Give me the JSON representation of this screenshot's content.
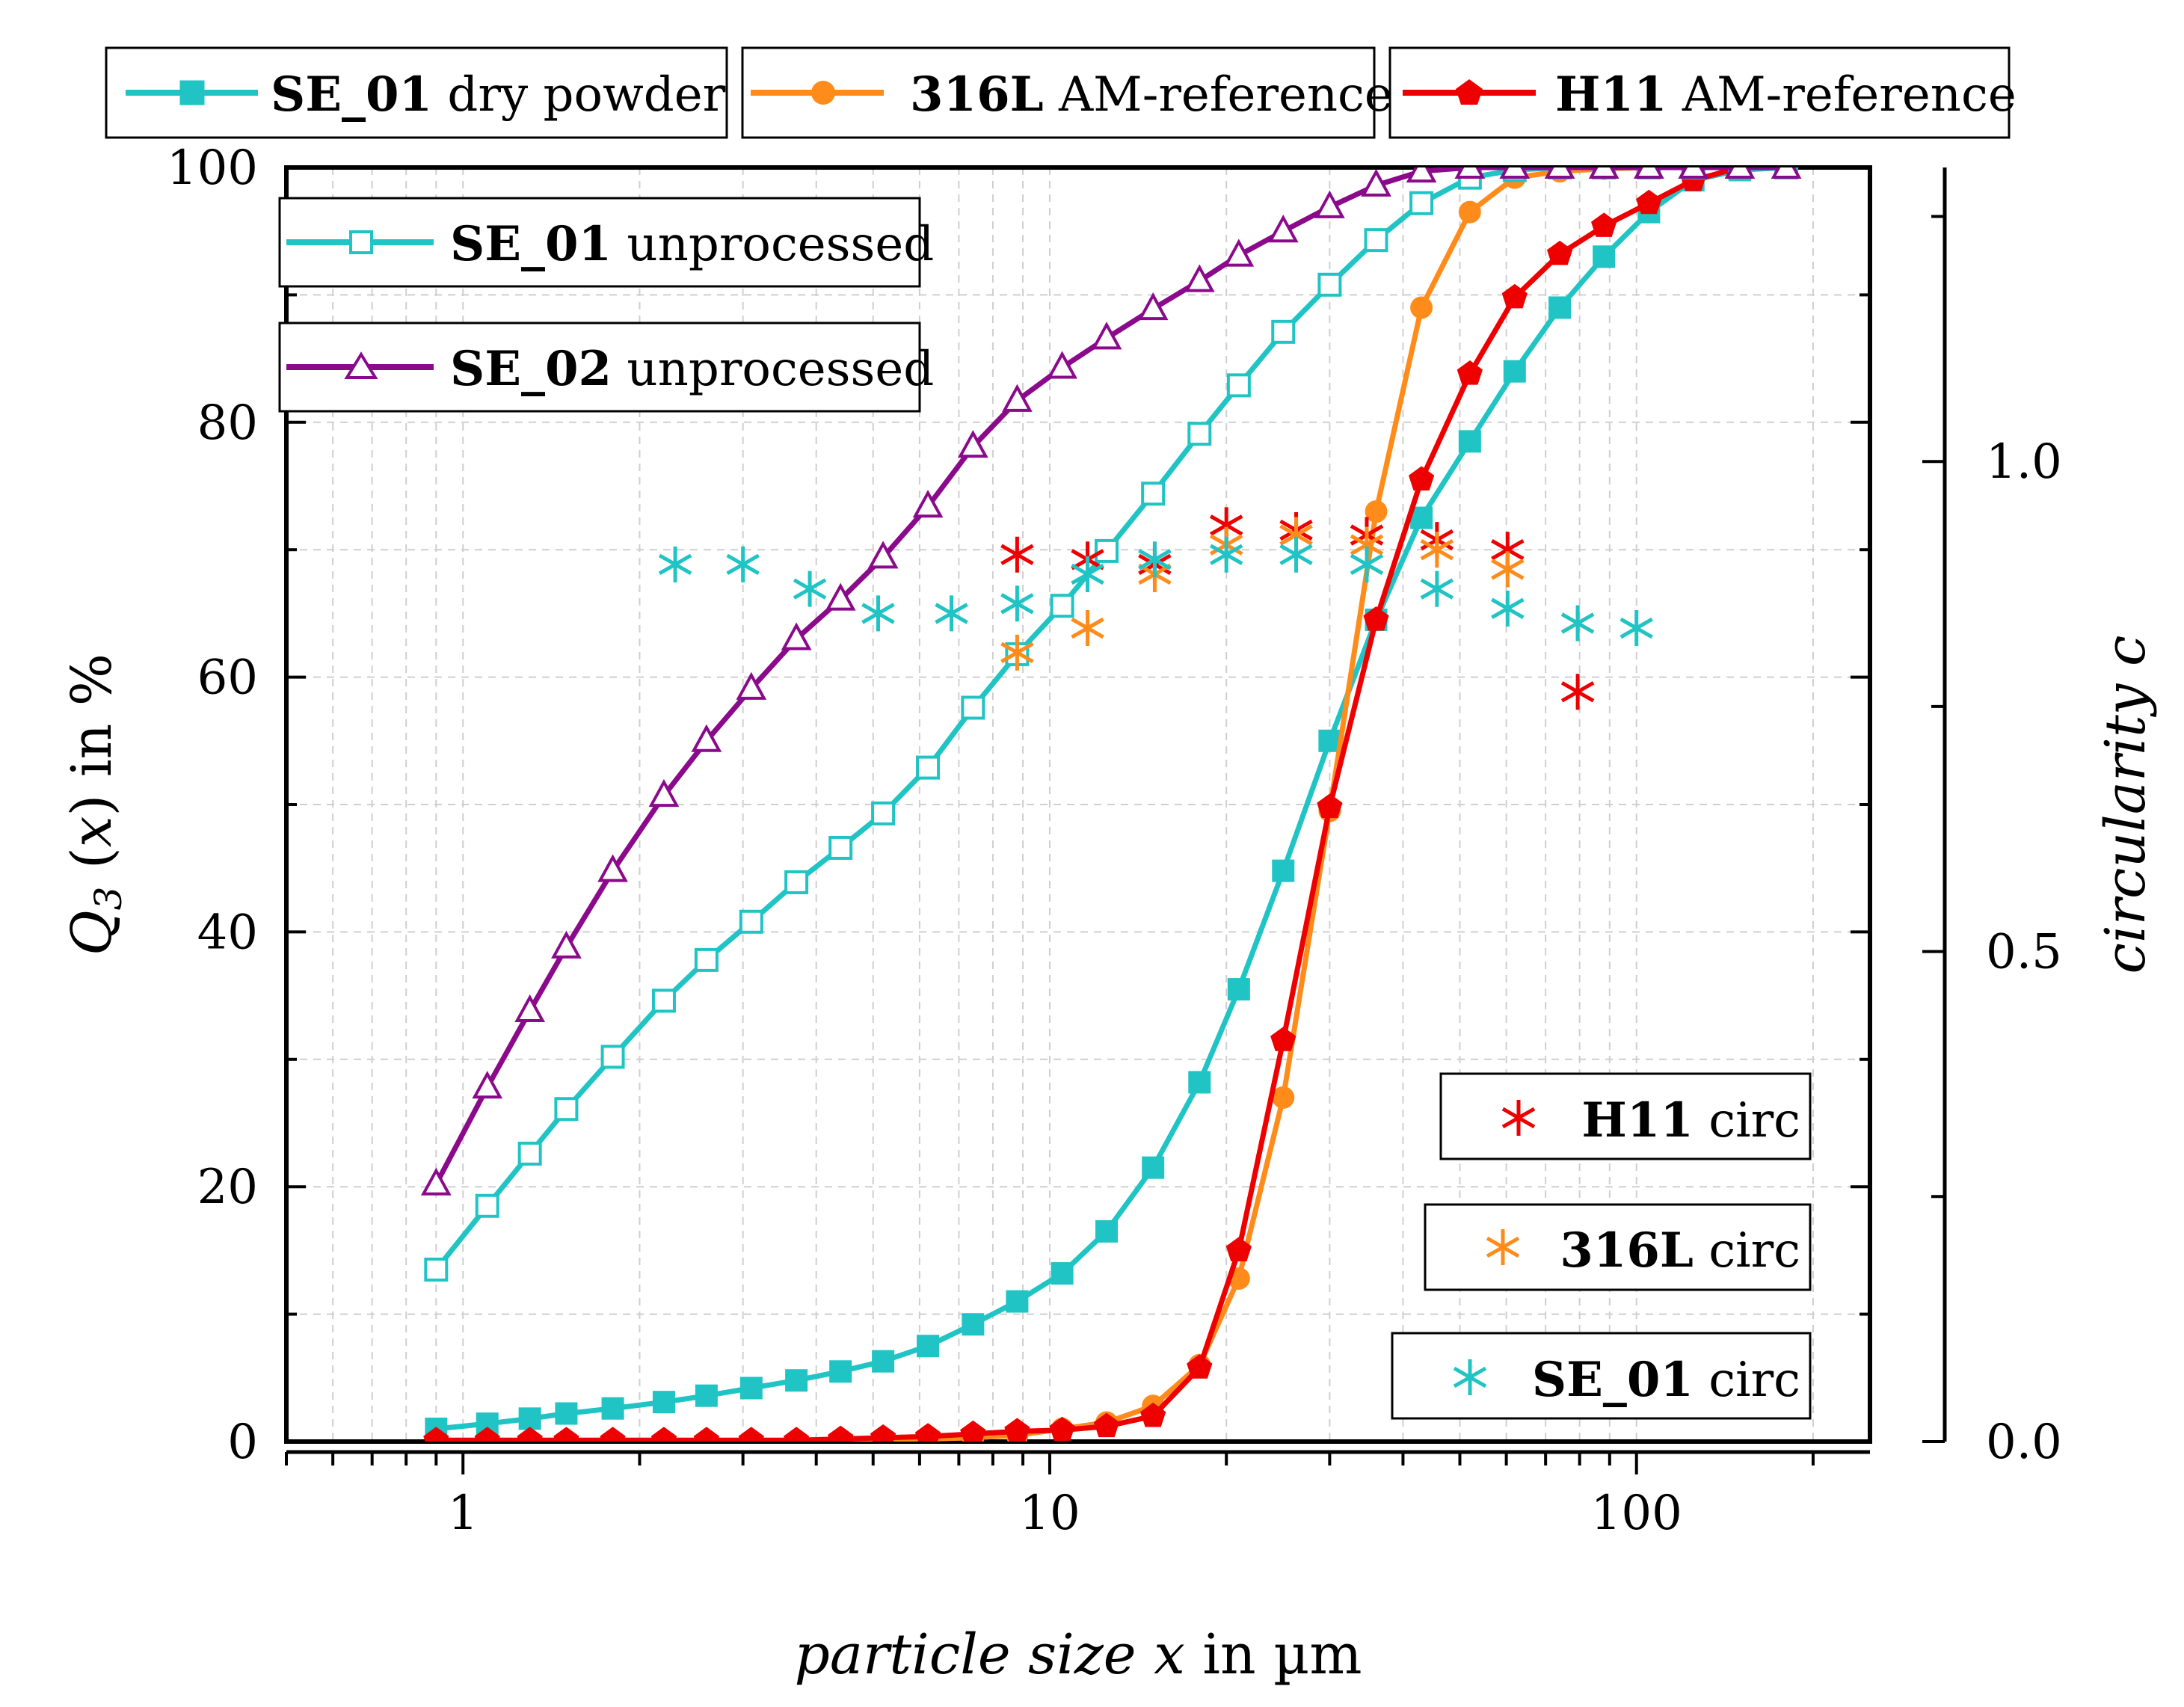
{
  "chart_data": {
    "type": "line",
    "x_axis": {
      "label_italic": "particle size x",
      "label_rest": " in µm",
      "scale": "log",
      "range": [
        0.5,
        250
      ],
      "ticks": [
        1,
        10,
        100
      ],
      "tick_labels": [
        "1",
        "10",
        "100"
      ]
    },
    "y_axis_left": {
      "label_q": "Q",
      "label_sub": "3",
      "label_x": "x",
      "label_rest": " in %",
      "range": [
        0,
        100
      ],
      "ticks": [
        0,
        20,
        40,
        60,
        80,
        100
      ],
      "tick_labels": [
        "0",
        "20",
        "40",
        "60",
        "80",
        "100"
      ]
    },
    "y_axis_right": {
      "label": "circularity c",
      "range": [
        0,
        1.3
      ],
      "ticks": [
        0,
        0.5,
        1.0
      ],
      "tick_labels": [
        "0.0",
        "0.5",
        "1.0"
      ]
    },
    "grid": true,
    "series": [
      {
        "name_bold": "SE_01",
        "name_rest": " dry powder",
        "color": "#20c4c4",
        "marker": "square-filled",
        "x": [
          0.9,
          1.1,
          1.3,
          1.5,
          1.8,
          2.2,
          2.6,
          3.1,
          3.7,
          4.4,
          5.2,
          6.2,
          7.4,
          8.8,
          10.5,
          12.5,
          15,
          18,
          21,
          25,
          30,
          36,
          43,
          52,
          62,
          74,
          88,
          105,
          125,
          150,
          180
        ],
        "y": [
          1,
          1.4,
          1.8,
          2.2,
          2.6,
          3.1,
          3.6,
          4.2,
          4.8,
          5.5,
          6.3,
          7.5,
          9.2,
          11,
          13.2,
          16.5,
          21.5,
          28.2,
          35.5,
          44.8,
          55,
          64.5,
          72.5,
          78.5,
          84,
          89,
          93,
          96.5,
          99,
          99.8,
          100
        ]
      },
      {
        "name_bold": "316L",
        "name_rest": " AM-reference",
        "color": "#ff8c1a",
        "marker": "circle-filled",
        "x": [
          0.9,
          1.1,
          1.3,
          1.5,
          1.8,
          2.2,
          2.6,
          3.1,
          3.7,
          4.4,
          5.2,
          6.2,
          7.4,
          8.8,
          10.5,
          12.5,
          15,
          18,
          21,
          25,
          30,
          36,
          43,
          52,
          62,
          74,
          88,
          105,
          125,
          150,
          180
        ],
        "y": [
          0,
          0,
          0,
          0,
          0,
          0,
          0,
          0,
          0,
          0,
          0.1,
          0.2,
          0.3,
          0.5,
          1,
          1.5,
          2.8,
          6,
          12.8,
          27,
          49.5,
          73,
          89,
          96.5,
          99.2,
          99.7,
          99.9,
          100,
          100,
          100,
          100
        ]
      },
      {
        "name_bold": "H11",
        "name_rest": " AM-reference",
        "color": "#ee0000",
        "marker": "pentagon-filled",
        "x": [
          0.9,
          1.1,
          1.3,
          1.5,
          1.8,
          2.2,
          2.6,
          3.1,
          3.7,
          4.4,
          5.2,
          6.2,
          7.4,
          8.8,
          10.5,
          12.5,
          15,
          18,
          21,
          25,
          30,
          36,
          43,
          52,
          62,
          74,
          88,
          105,
          125,
          150,
          180
        ],
        "y": [
          0.1,
          0.1,
          0.1,
          0.1,
          0.1,
          0.1,
          0.1,
          0.1,
          0.1,
          0.2,
          0.3,
          0.4,
          0.6,
          0.8,
          0.9,
          1.2,
          2,
          5.8,
          15,
          31.5,
          49.8,
          64.5,
          75.5,
          83.8,
          89.8,
          93.2,
          95.4,
          97.2,
          99,
          100,
          100
        ]
      },
      {
        "name_bold": "SE_01",
        "name_rest": " unprocessed",
        "color": "#20c4c4",
        "marker": "square-open",
        "x": [
          0.9,
          1.1,
          1.3,
          1.5,
          1.8,
          2.2,
          2.6,
          3.1,
          3.7,
          4.4,
          5.2,
          6.2,
          7.4,
          8.8,
          10.5,
          12.5,
          15,
          18,
          21,
          25,
          30,
          36,
          43,
          52,
          62,
          74,
          88,
          105,
          125,
          150,
          180
        ],
        "y": [
          13.5,
          18.5,
          22.6,
          26.1,
          30.2,
          34.6,
          37.8,
          40.8,
          43.9,
          46.6,
          49.3,
          52.9,
          57.6,
          61.8,
          65.6,
          69.9,
          74.4,
          79.1,
          82.9,
          87.1,
          90.8,
          94.3,
          97.2,
          99.2,
          99.8,
          100,
          100,
          100,
          100,
          100,
          100
        ]
      },
      {
        "name_bold": "SE_02",
        "name_rest": " unprocessed",
        "color": "#8b0a8b",
        "marker": "triangle-open",
        "x": [
          0.9,
          1.1,
          1.3,
          1.5,
          1.8,
          2.2,
          2.6,
          3.1,
          3.7,
          4.4,
          5.2,
          6.2,
          7.4,
          8.8,
          10.5,
          12.5,
          15,
          18,
          21,
          25,
          30,
          36,
          43,
          52,
          62,
          74,
          88,
          105,
          125,
          150,
          180
        ],
        "y": [
          20.2,
          27.8,
          33.8,
          38.8,
          44.8,
          50.7,
          55,
          59.1,
          63,
          66.1,
          69.4,
          73.4,
          78.1,
          81.7,
          84.3,
          86.6,
          88.9,
          91.1,
          93.1,
          95,
          96.9,
          98.6,
          99.7,
          100,
          100,
          100,
          100,
          100,
          100,
          100,
          100
        ]
      }
    ],
    "scatter_series": [
      {
        "name_bold": "H11",
        "name_rest": " circ",
        "color": "#ee0000",
        "x": [
          8.8,
          11.6,
          15.1,
          20,
          26.3,
          34.7,
          45.7,
          60.3,
          79.4
        ],
        "y_circ": [
          0.905,
          0.9,
          0.895,
          0.935,
          0.93,
          0.925,
          0.92,
          0.91,
          0.765
        ]
      },
      {
        "name_bold": "316L",
        "name_rest": " circ",
        "color": "#ff8c1a",
        "x": [
          8.8,
          11.6,
          15.1,
          20,
          26.3,
          34.7,
          45.7,
          60.3,
          79.4
        ],
        "y_circ": [
          0.805,
          0.83,
          0.885,
          0.915,
          0.925,
          0.915,
          0.91,
          0.89,
          0.835
        ]
      },
      {
        "name_bold": "SE_01",
        "name_rest": " circ",
        "color": "#20c4c4",
        "x": [
          2.3,
          3.0,
          3.9,
          5.1,
          6.8,
          8.8,
          11.6,
          15.1,
          20,
          26.3,
          34.7,
          45.7,
          60.3,
          79.4,
          100
        ],
        "y_circ": [
          0.895,
          0.895,
          0.87,
          0.845,
          0.845,
          0.855,
          0.885,
          0.9,
          0.905,
          0.905,
          0.895,
          0.87,
          0.85,
          0.835,
          0.83
        ]
      }
    ]
  }
}
